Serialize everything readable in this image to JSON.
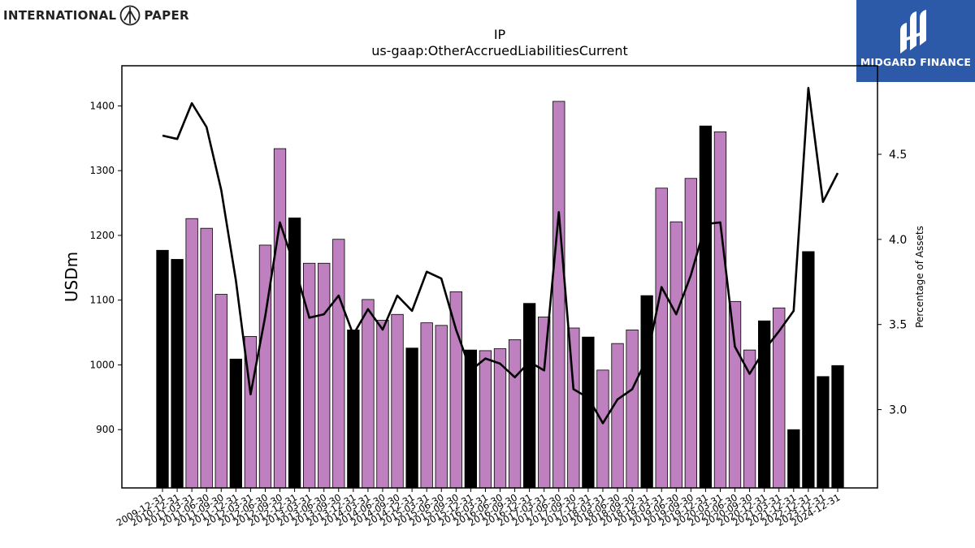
{
  "brand_left": {
    "text_left": "INTERNATIONAL",
    "text_right": "PAPER",
    "icon": "international-paper-logo-icon"
  },
  "brand_right": {
    "text": "MIDGARD FINANCE",
    "icon": "midgard-logo-icon",
    "bg_color": "#2c5aa8"
  },
  "chart_data": {
    "type": "bar",
    "title": "IP",
    "subtitle": "us-gaap:OtherAccruedLiabilitiesCurrent",
    "ylabel": "USDm",
    "ylabel_right": "Percentage of Assets",
    "ylim": [
      810,
      1462
    ],
    "ylim_right": [
      2.54,
      5.02
    ],
    "yticks": [
      900,
      1000,
      1100,
      1200,
      1300,
      1400
    ],
    "yticks_right": [
      3.0,
      3.5,
      4.0,
      4.5
    ],
    "bar_colors": {
      "annual": "#000000",
      "quarterly": "#bf80bf"
    },
    "line_color": "#000000",
    "categories": [
      "2009-12-31",
      "2010-12-31",
      "2011-03-31",
      "2011-06-30",
      "2011-09-30",
      "2011-12-31",
      "2012-03-31",
      "2012-06-30",
      "2012-09-30",
      "2012-12-31",
      "2013-03-31",
      "2013-06-30",
      "2013-09-30",
      "2013-12-31",
      "2014-03-31",
      "2014-06-30",
      "2014-09-30",
      "2014-12-31",
      "2015-03-31",
      "2015-06-30",
      "2015-09-30",
      "2015-12-31",
      "2016-03-31",
      "2016-06-30",
      "2016-09-30",
      "2016-12-31",
      "2017-03-31",
      "2017-06-30",
      "2017-09-30",
      "2017-12-31",
      "2018-03-31",
      "2018-06-30",
      "2018-09-30",
      "2018-12-31",
      "2019-03-31",
      "2019-06-30",
      "2019-09-30",
      "2019-12-31",
      "2020-03-31",
      "2020-06-30",
      "2020-09-30",
      "2020-12-31",
      "2021-03-31",
      "2021-12-31",
      "2022-12-31",
      "2023-12-31",
      "2024-12-31"
    ],
    "values": [
      1177,
      1163,
      1226,
      1211,
      1109,
      1009,
      1044,
      1185,
      1334,
      1227,
      1157,
      1157,
      1194,
      1054,
      1101,
      1069,
      1078,
      1026,
      1065,
      1061,
      1113,
      1023,
      1022,
      1025,
      1039,
      1095,
      1074,
      1407,
      1057,
      1043,
      992,
      1033,
      1054,
      1107,
      1273,
      1221,
      1288,
      1369,
      1360,
      1098,
      1023,
      1068,
      1088,
      900,
      1175,
      982,
      999
    ],
    "annual": [
      true,
      true,
      false,
      false,
      false,
      true,
      false,
      false,
      false,
      true,
      false,
      false,
      false,
      true,
      false,
      false,
      false,
      true,
      false,
      false,
      false,
      true,
      false,
      false,
      false,
      true,
      false,
      false,
      false,
      true,
      false,
      false,
      false,
      true,
      false,
      false,
      false,
      true,
      false,
      false,
      false,
      true,
      false,
      true,
      true,
      true,
      true
    ],
    "series_right": [
      4.61,
      4.59,
      4.8,
      4.66,
      4.29,
      3.76,
      3.09,
      3.55,
      4.1,
      3.84,
      3.54,
      3.56,
      3.67,
      3.44,
      3.59,
      3.47,
      3.67,
      3.58,
      3.81,
      3.77,
      3.47,
      3.23,
      3.3,
      3.27,
      3.19,
      3.28,
      3.23,
      4.16,
      3.12,
      3.07,
      2.92,
      3.06,
      3.12,
      3.3,
      3.72,
      3.56,
      3.79,
      4.09,
      4.1,
      3.37,
      3.21,
      3.35,
      3.46,
      3.58,
      4.89,
      4.22,
      4.39
    ]
  }
}
